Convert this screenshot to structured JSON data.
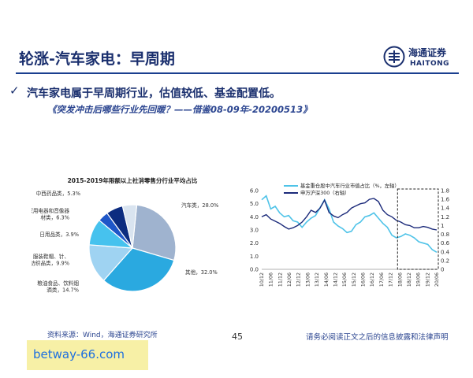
{
  "slide": {
    "title": "轮涨-汽车家电：早周期",
    "bullet_mark": "✓",
    "bullet": "汽车家电属于早周期行业，估值较低、基金配置低。",
    "subline": "《突发冲击后哪些行业先回暖？——借鉴08-09年-20200513》",
    "logo_cn": "海通证券",
    "logo_en": "HAITONG",
    "footer_source": "资料来源：Wind，海通证券研究所",
    "page_number": "45",
    "footer_disclaimer": "请务必阅读正文之后的信息披露和法律声明",
    "watermark": "betway-66.com"
  },
  "colors": {
    "brand_navy": "#1a2f6e",
    "cyan_line": "#4fc3e8",
    "navy_line": "#1b2a7a"
  },
  "chart_data": [
    {
      "type": "pie",
      "title": "2015-2019年限额以上社消零售分行业平均占比",
      "labels": [
        "汽车类",
        "其他",
        "粮油食品、饮料烟酒类",
        "服装鞋帽、针、纺织品类",
        "日用品类",
        "家用电器和音像器材类",
        "中西药品类"
      ],
      "label_texts": [
        "汽车类，28.0%",
        "其他，32.0%",
        "粮油食品、饮料烟\n酒类，14.7%",
        "服装鞋帽、针、\n纺织品类，9.9%",
        "日用品类，3.9%",
        "家用电器和音像器\n材类，6.3%",
        "中西药品类，5.3%"
      ],
      "values": [
        28.0,
        32.0,
        14.7,
        9.9,
        3.9,
        6.3,
        5.3
      ],
      "colors": [
        "#9fb3cf",
        "#2aa9e0",
        "#9fd3f2",
        "#46c2ee",
        "#1e56c8",
        "#0c2c80",
        "#d9e4f0"
      ]
    },
    {
      "type": "line",
      "series": [
        {
          "name": "基金重仓股中汽车行业市值占比（%，左轴）",
          "axis": "left",
          "color": "#4fc3e8",
          "values": [
            5.3,
            5.6,
            4.6,
            4.8,
            4.3,
            4.0,
            4.1,
            3.7,
            3.6,
            3.2,
            3.6,
            3.9,
            4.1,
            4.7,
            5.3,
            4.6,
            3.6,
            3.3,
            3.1,
            2.8,
            2.9,
            3.4,
            3.6,
            4.0,
            4.1,
            4.3,
            3.9,
            3.5,
            3.2,
            2.6,
            2.4,
            2.5,
            2.7,
            2.6,
            2.4,
            2.1,
            2.0,
            1.9,
            1.5,
            1.3
          ]
        },
        {
          "name": "申万沪深300（右轴）",
          "axis": "right",
          "color": "#1b2a7a",
          "values": [
            1.2,
            1.25,
            1.15,
            1.1,
            1.05,
            0.98,
            0.92,
            0.95,
            1.0,
            1.08,
            1.2,
            1.35,
            1.3,
            1.4,
            1.58,
            1.3,
            1.22,
            1.18,
            1.25,
            1.3,
            1.4,
            1.45,
            1.5,
            1.52,
            1.6,
            1.62,
            1.55,
            1.35,
            1.25,
            1.2,
            1.12,
            1.08,
            1.02,
            1.0,
            0.95,
            0.95,
            0.98,
            0.96,
            0.92,
            0.9
          ]
        }
      ],
      "x_tick_labels": [
        "10/12",
        "11/06",
        "11/12",
        "12/06",
        "12/12",
        "13/06",
        "13/12",
        "14/06",
        "14/12",
        "15/06",
        "15/12",
        "16/06",
        "16/12",
        "17/06",
        "17/12",
        "18/06",
        "18/12",
        "19/06",
        "19/12",
        "20/06"
      ],
      "y_left": {
        "ticks": [
          "0.0",
          "1.0",
          "2.0",
          "3.0",
          "4.0",
          "5.0",
          "6.0"
        ],
        "range": [
          0,
          6
        ]
      },
      "y_right": {
        "ticks": [
          "0",
          "0.2",
          "0.4",
          "0.6",
          "0.8",
          "1",
          "1.2",
          "1.4",
          "1.6",
          "1.8"
        ],
        "range": [
          0,
          1.8
        ]
      },
      "highlight_box": {
        "from_label": "18/06",
        "to_label": "20/06",
        "style": "dashed"
      }
    }
  ]
}
